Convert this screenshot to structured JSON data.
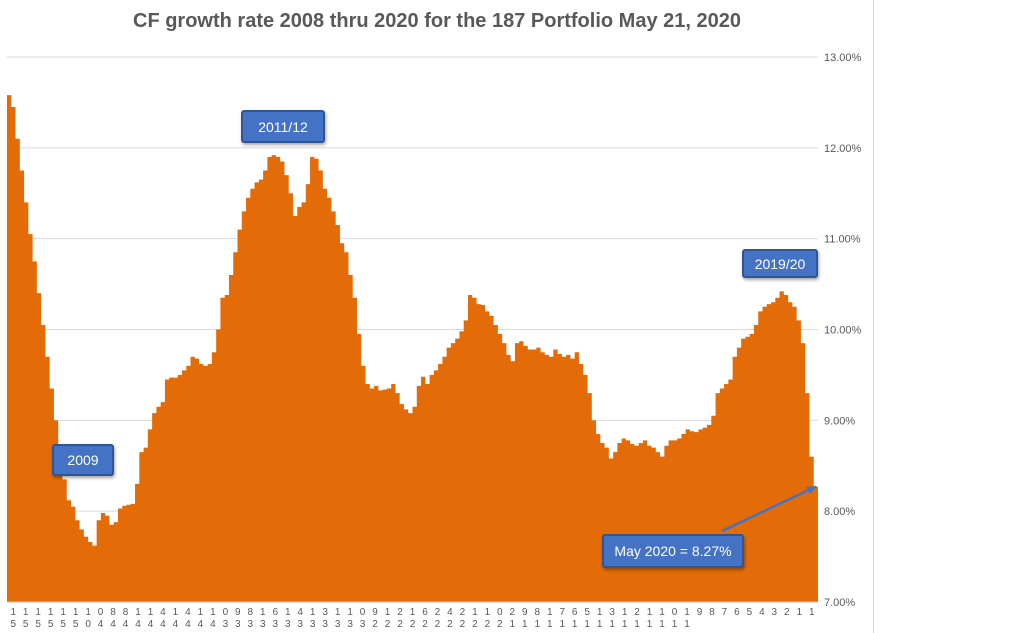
{
  "chart_data": {
    "type": "area",
    "title": "CF growth rate 2008 thru 2020 for the 187 Portfolio May 21, 2020",
    "xlabel": "",
    "ylabel": "",
    "ylim": [
      7.0,
      13.0
    ],
    "y_tick_labels": [
      "7.00%",
      "8.00%",
      "9.00%",
      "10.00%",
      "11.00%",
      "12.00%",
      "13.00%"
    ],
    "grid": true,
    "series_color": "#e36c09",
    "x_tick_labels": [
      {
        "top": "1",
        "bottom": "5"
      },
      {
        "top": "1",
        "bottom": "5"
      },
      {
        "top": "1",
        "bottom": "5"
      },
      {
        "top": "1",
        "bottom": "5"
      },
      {
        "top": "1",
        "bottom": "5"
      },
      {
        "top": "1",
        "bottom": "5"
      },
      {
        "top": "1",
        "bottom": "0"
      },
      {
        "top": "0",
        "bottom": "4"
      },
      {
        "top": "8",
        "bottom": "4"
      },
      {
        "top": "8",
        "bottom": "4"
      },
      {
        "top": "1",
        "bottom": "4"
      },
      {
        "top": "1",
        "bottom": "4"
      },
      {
        "top": "4",
        "bottom": "4"
      },
      {
        "top": "1",
        "bottom": "4"
      },
      {
        "top": "4",
        "bottom": "4"
      },
      {
        "top": "1",
        "bottom": "4"
      },
      {
        "top": "1",
        "bottom": "4"
      },
      {
        "top": "0",
        "bottom": "3"
      },
      {
        "top": "9",
        "bottom": "3"
      },
      {
        "top": "8",
        "bottom": "3"
      },
      {
        "top": "1",
        "bottom": "3"
      },
      {
        "top": "6",
        "bottom": "3"
      },
      {
        "top": "1",
        "bottom": "3"
      },
      {
        "top": "4",
        "bottom": "3"
      },
      {
        "top": "1",
        "bottom": "3"
      },
      {
        "top": "3",
        "bottom": "3"
      },
      {
        "top": "1",
        "bottom": "3"
      },
      {
        "top": "1",
        "bottom": "3"
      },
      {
        "top": "0",
        "bottom": "3"
      },
      {
        "top": "9",
        "bottom": "2"
      },
      {
        "top": "1",
        "bottom": "2"
      },
      {
        "top": "2",
        "bottom": "2"
      },
      {
        "top": "1",
        "bottom": "2"
      },
      {
        "top": "6",
        "bottom": "2"
      },
      {
        "top": "2",
        "bottom": "2"
      },
      {
        "top": "4",
        "bottom": "2"
      },
      {
        "top": "2",
        "bottom": "2"
      },
      {
        "top": "1",
        "bottom": "2"
      },
      {
        "top": "1",
        "bottom": "2"
      },
      {
        "top": "0",
        "bottom": "2"
      },
      {
        "top": "2",
        "bottom": "1"
      },
      {
        "top": "9",
        "bottom": "1"
      },
      {
        "top": "8",
        "bottom": "1"
      },
      {
        "top": "1",
        "bottom": "1"
      },
      {
        "top": "7",
        "bottom": "1"
      },
      {
        "top": "6",
        "bottom": "1"
      },
      {
        "top": "5",
        "bottom": "1"
      },
      {
        "top": "1",
        "bottom": "1"
      },
      {
        "top": "3",
        "bottom": "1"
      },
      {
        "top": "1",
        "bottom": "1"
      },
      {
        "top": "2",
        "bottom": "1"
      },
      {
        "top": "1",
        "bottom": "1"
      },
      {
        "top": "1",
        "bottom": "1"
      },
      {
        "top": "0",
        "bottom": "1"
      },
      {
        "top": "1",
        "bottom": "1"
      },
      {
        "top": "9",
        "bottom": ""
      },
      {
        "top": "8",
        "bottom": ""
      },
      {
        "top": "7",
        "bottom": ""
      },
      {
        "top": "6",
        "bottom": ""
      },
      {
        "top": "5",
        "bottom": ""
      },
      {
        "top": "4",
        "bottom": ""
      },
      {
        "top": "3",
        "bottom": ""
      },
      {
        "top": "2",
        "bottom": ""
      },
      {
        "top": "1",
        "bottom": ""
      },
      {
        "top": "1",
        "bottom": ""
      }
    ],
    "series": [
      {
        "values": [
          12.58,
          12.45,
          12.1,
          11.75,
          11.4,
          11.05,
          10.75,
          10.4,
          10.05,
          9.7,
          9.35,
          9.0,
          8.65,
          8.35,
          8.12,
          8.05,
          7.9,
          7.8,
          7.72,
          7.66,
          7.62,
          7.9,
          7.98,
          7.95,
          7.85,
          7.88,
          8.03,
          8.06,
          8.07,
          8.08,
          8.3,
          8.65,
          8.7,
          8.9,
          9.08,
          9.15,
          9.2,
          9.45,
          9.47,
          9.47,
          9.5,
          9.55,
          9.6,
          9.7,
          9.68,
          9.62,
          9.6,
          9.62,
          9.75,
          10.0,
          10.35,
          10.38,
          10.6,
          10.85,
          11.1,
          11.3,
          11.45,
          11.55,
          11.62,
          11.65,
          11.75,
          11.9,
          11.92,
          11.9,
          11.85,
          11.7,
          11.5,
          11.25,
          11.35,
          11.4,
          11.6,
          11.9,
          11.88,
          11.75,
          11.55,
          11.45,
          11.3,
          11.15,
          10.95,
          10.85,
          10.6,
          10.35,
          9.95,
          9.6,
          9.4,
          9.35,
          9.38,
          9.33,
          9.34,
          9.35,
          9.4,
          9.3,
          9.18,
          9.12,
          9.08,
          9.15,
          9.38,
          9.48,
          9.4,
          9.5,
          9.55,
          9.62,
          9.7,
          9.8,
          9.85,
          9.9,
          9.98,
          10.1,
          10.38,
          10.35,
          10.28,
          10.27,
          10.2,
          10.15,
          10.05,
          9.95,
          9.85,
          9.72,
          9.65,
          9.85,
          9.87,
          9.82,
          9.78,
          9.78,
          9.8,
          9.75,
          9.72,
          9.7,
          9.78,
          9.73,
          9.7,
          9.72,
          9.68,
          9.75,
          9.62,
          9.5,
          9.3,
          9.0,
          8.85,
          8.75,
          8.7,
          8.58,
          8.65,
          8.75,
          8.8,
          8.78,
          8.74,
          8.72,
          8.75,
          8.78,
          8.72,
          8.7,
          8.65,
          8.6,
          8.72,
          8.78,
          8.78,
          8.8,
          8.85,
          8.9,
          8.88,
          8.87,
          8.9,
          8.92,
          8.95,
          9.05,
          9.3,
          9.35,
          9.4,
          9.45,
          9.7,
          9.8,
          9.9,
          9.92,
          9.95,
          10.05,
          10.2,
          10.25,
          10.28,
          10.3,
          10.35,
          10.42,
          10.38,
          10.3,
          10.25,
          10.1,
          9.85,
          9.3,
          8.6,
          8.27
        ]
      }
    ],
    "annotations": [
      {
        "text": "2009"
      },
      {
        "text": "2011/12"
      },
      {
        "text": "2019/20"
      },
      {
        "text": "May 2020 = 8.27%"
      }
    ]
  }
}
